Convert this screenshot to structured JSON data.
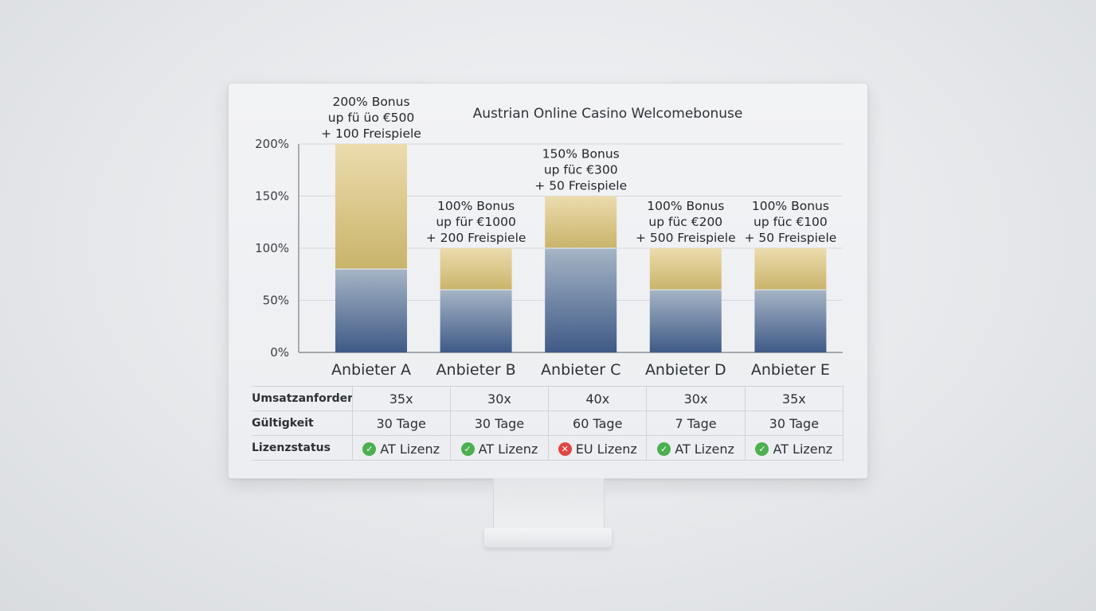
{
  "chart_data": {
    "type": "bar",
    "title": "Austrian Online Casino Welcomebonuse",
    "yticks": [
      "200%",
      "150%",
      "100%",
      "50%",
      "0%"
    ],
    "ylim": [
      0,
      200
    ],
    "categories": [
      "Anbieter A",
      "Anbieter B",
      "Anbieter C",
      "Anbieter D",
      "Anbieter E"
    ],
    "values": [
      200,
      100,
      150,
      100,
      100
    ],
    "segments_lower": [
      80,
      60,
      100,
      60,
      60
    ],
    "bar_labels": [
      [
        "200% Bonus",
        "up fü üo €500",
        "+ 100 Freispiele"
      ],
      [
        "100% Bonus",
        "up für €1000",
        "+ 200 Freispiele"
      ],
      [
        "150% Bonus",
        "up füc €300",
        "+ 50 Freispiele"
      ],
      [
        "100% Bonus",
        "up füc €200",
        "+ 500 Freispiele"
      ],
      [
        "100% Bonus",
        "up füc €100",
        "+ 50 Freispiele"
      ]
    ],
    "grid": true,
    "colors": {
      "upper_top": "#ecdcae",
      "upper_bottom": "#c9b46a",
      "lower_top": "#a6b5c6",
      "lower_bottom": "#3f5a86"
    }
  },
  "table": {
    "rows": [
      {
        "label": "Umsatzanforderung",
        "cells": [
          "35x",
          "30x",
          "40x",
          "30x",
          "35x"
        ]
      },
      {
        "label": "Gültigkeit",
        "cells": [
          "30 Tage",
          "30 Tage",
          "60 Tage",
          "7 Tage",
          "30 Tage"
        ]
      }
    ],
    "license": {
      "label": "Lizenzstatus",
      "cells": [
        {
          "text": "AT Lizenz",
          "status": "ok",
          "icon": "check-circle-icon"
        },
        {
          "text": "AT Lizenz",
          "status": "ok",
          "icon": "check-circle-icon"
        },
        {
          "text": "EU Lizenz",
          "status": "bad",
          "icon": "cross-circle-icon"
        },
        {
          "text": "AT Lizenz",
          "status": "ok",
          "icon": "check-circle-icon"
        },
        {
          "text": "AT Lizenz",
          "status": "ok",
          "icon": "check-circle-icon"
        }
      ]
    }
  }
}
